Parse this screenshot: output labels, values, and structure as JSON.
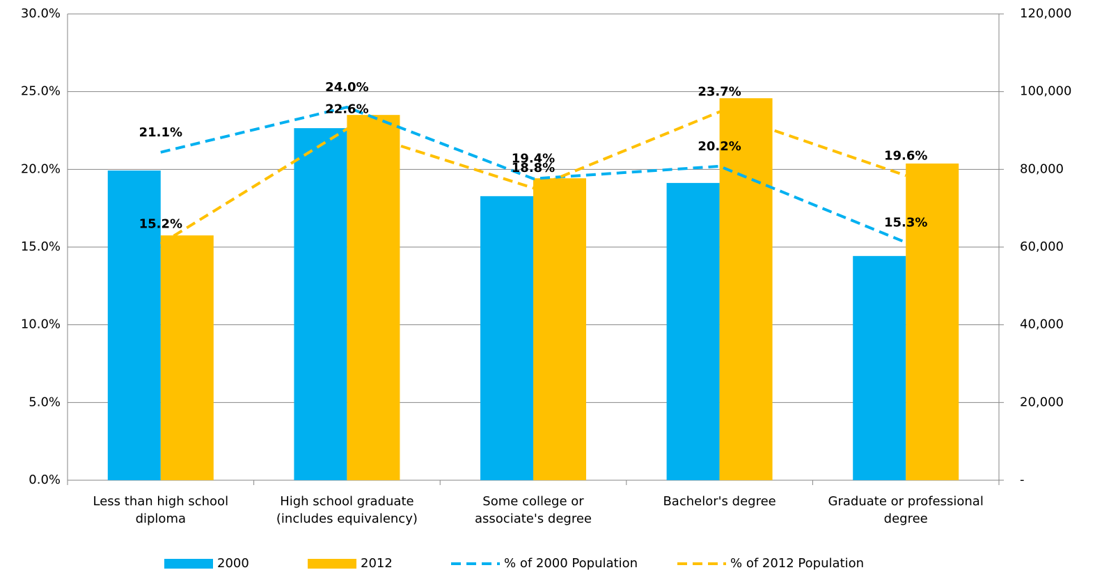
{
  "chart_data": {
    "type": "combo",
    "categories": [
      "Less than high school diploma",
      "High school graduate (includes equivalency)",
      "Some college or associate's degree",
      "Bachelor's degree",
      "Graduate or professional degree"
    ],
    "series": [
      {
        "name": "2000",
        "type": "bar",
        "axis": "y2",
        "color": "#00b0f0",
        "values": [
          79700,
          90600,
          73100,
          76500,
          57700
        ]
      },
      {
        "name": "2012",
        "type": "bar",
        "axis": "y2",
        "color": "#ffc000",
        "values": [
          63000,
          94000,
          77700,
          98300,
          81500
        ]
      },
      {
        "name": "% of 2000 Population",
        "type": "line",
        "dashed": true,
        "color": "#00b0f0",
        "values": [
          21.1,
          24.0,
          19.4,
          20.2,
          15.3
        ],
        "value_labels": [
          "21.1%",
          "24.0%",
          "19.4%",
          "20.2%",
          "15.3%"
        ]
      },
      {
        "name": "% of 2012 Population",
        "type": "line",
        "dashed": true,
        "color": "#ffc000",
        "values": [
          15.2,
          22.6,
          18.8,
          23.7,
          19.6
        ],
        "value_labels": [
          "15.2%",
          "22.6%",
          "18.8%",
          "23.7%",
          "19.6%"
        ]
      }
    ],
    "ylim": [
      0,
      30
    ],
    "yticks": [
      {
        "value": 0,
        "label": "0.0%"
      },
      {
        "value": 5,
        "label": "5.0%"
      },
      {
        "value": 10,
        "label": "10.0%"
      },
      {
        "value": 15,
        "label": "15.0%"
      },
      {
        "value": 20,
        "label": "20.0%"
      },
      {
        "value": 25,
        "label": "25.0%"
      },
      {
        "value": 30,
        "label": "30.0%"
      }
    ],
    "y2lim": [
      0,
      120000
    ],
    "y2ticks": [
      {
        "value": 0,
        "label": "-"
      },
      {
        "value": 20000,
        "label": "20,000"
      },
      {
        "value": 40000,
        "label": "40,000"
      },
      {
        "value": 60000,
        "label": "60,000"
      },
      {
        "value": 80000,
        "label": "80,000"
      },
      {
        "value": 100000,
        "label": "100,000"
      },
      {
        "value": 120000,
        "label": "120,000"
      }
    ],
    "grid": true,
    "legend": "bottom"
  }
}
